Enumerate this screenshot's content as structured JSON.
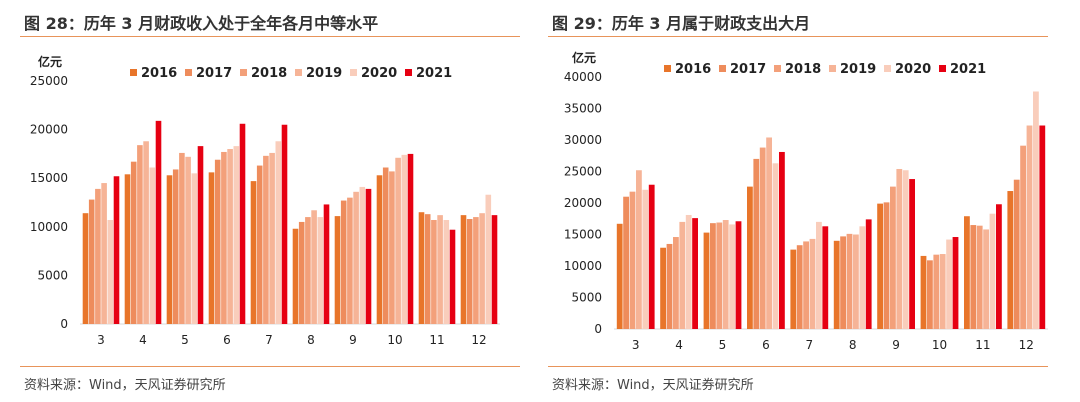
{
  "charts": [
    {
      "title": "图 28：历年 3 月财政收入处于全年各月中等水平",
      "source": "资料来源：Wind，天风证券研究所",
      "chart_data": {
        "type": "bar",
        "unit_label": "亿元",
        "categories": [
          "3",
          "4",
          "5",
          "6",
          "7",
          "8",
          "9",
          "10",
          "11",
          "12"
        ],
        "ylim": [
          0,
          25000
        ],
        "yticks": [
          0,
          5000,
          10000,
          15000,
          20000,
          25000
        ],
        "grid": false,
        "legend_position": "top",
        "series": [
          {
            "name": "2016",
            "color": "#e8752a",
            "values": [
              11400,
              15400,
              15300,
              15600,
              14700,
              9800,
              11100,
              15300,
              11500,
              11200
            ]
          },
          {
            "name": "2017",
            "color": "#ee8c5c",
            "values": [
              12800,
              16700,
              15900,
              16900,
              16300,
              10500,
              12700,
              16100,
              11300,
              10800
            ]
          },
          {
            "name": "2018",
            "color": "#f3a07a",
            "values": [
              13900,
              18400,
              17600,
              17700,
              17300,
              11000,
              13000,
              15700,
              10700,
              11000
            ]
          },
          {
            "name": "2019",
            "color": "#f6b497",
            "values": [
              14500,
              18800,
              17200,
              18000,
              17600,
              11700,
              13600,
              17100,
              11200,
              11400
            ]
          },
          {
            "name": "2020",
            "color": "#f9cdbb",
            "values": [
              10700,
              16100,
              15500,
              18300,
              18800,
              11000,
              14100,
              17400,
              10700,
              13300
            ]
          },
          {
            "name": "2021",
            "color": "#e60012",
            "values": [
              15200,
              20900,
              18300,
              20600,
              20500,
              12300,
              13900,
              17500,
              9700,
              11200
            ]
          }
        ]
      }
    },
    {
      "title": "图 29：历年 3 月属于财政支出大月",
      "source": "资料来源：Wind，天风证券研究所",
      "chart_data": {
        "type": "bar",
        "unit_label": "亿元",
        "categories": [
          "3",
          "4",
          "5",
          "6",
          "7",
          "8",
          "9",
          "10",
          "11",
          "12"
        ],
        "ylim": [
          0,
          40000
        ],
        "yticks": [
          0,
          5000,
          10000,
          15000,
          20000,
          25000,
          30000,
          35000,
          40000
        ],
        "grid": false,
        "legend_position": "top",
        "series": [
          {
            "name": "2016",
            "color": "#e8752a",
            "values": [
              16700,
              12900,
              15300,
              22600,
              12600,
              14000,
              19900,
              11600,
              17900,
              21900
            ]
          },
          {
            "name": "2017",
            "color": "#ee8c5c",
            "values": [
              21000,
              13500,
              16800,
              27000,
              13300,
              14700,
              20100,
              10900,
              16500,
              23700
            ]
          },
          {
            "name": "2018",
            "color": "#f3a07a",
            "values": [
              21800,
              14600,
              16900,
              28800,
              13900,
              15100,
              22600,
              11800,
              16400,
              29100
            ]
          },
          {
            "name": "2019",
            "color": "#f6b497",
            "values": [
              25200,
              17000,
              17300,
              30400,
              14300,
              15000,
              25400,
              11900,
              15800,
              32300
            ]
          },
          {
            "name": "2020",
            "color": "#f9cdbb",
            "values": [
              22100,
              18100,
              16600,
              26300,
              17000,
              16300,
              25200,
              14200,
              18300,
              37700
            ]
          },
          {
            "name": "2021",
            "color": "#e60012",
            "values": [
              22900,
              17600,
              17100,
              28100,
              16300,
              17400,
              23800,
              14600,
              19800,
              32300
            ]
          }
        ]
      }
    }
  ]
}
